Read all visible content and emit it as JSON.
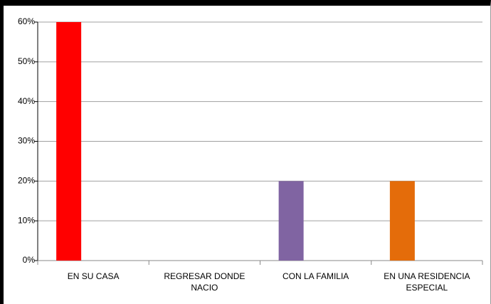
{
  "chart_data": {
    "type": "bar",
    "categories": [
      "EN SU CASA",
      "REGRESAR DONDE NACIO",
      "CON LA FAMILIA",
      "EN UNA RESIDENCIA ESPECIAL"
    ],
    "values": [
      60,
      0,
      20,
      20
    ],
    "colors": [
      "#ff0000",
      "#9bbb59",
      "#8064a2",
      "#e46c0a"
    ],
    "ylim": [
      0,
      60
    ],
    "yticks": [
      {
        "value": 0,
        "label": "0%"
      },
      {
        "value": 10,
        "label": "10%"
      },
      {
        "value": 20,
        "label": "20%"
      },
      {
        "value": 30,
        "label": "30%"
      },
      {
        "value": 40,
        "label": "40%"
      },
      {
        "value": 50,
        "label": "50%"
      },
      {
        "value": 60,
        "label": "60%"
      }
    ],
    "grid": true
  }
}
